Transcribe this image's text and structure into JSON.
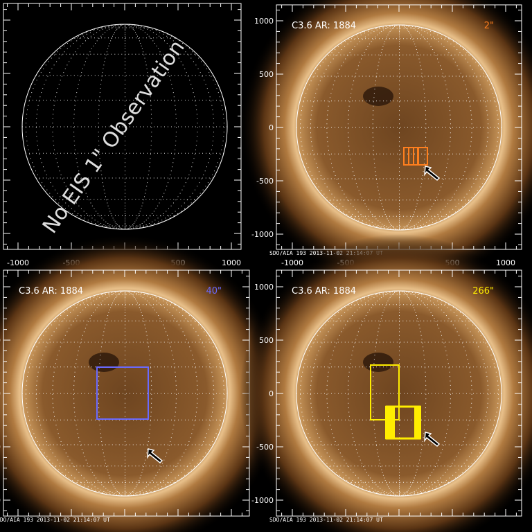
{
  "panels": [
    {
      "id": "no-obs",
      "overlay_text": "No EIS 1\" Observation",
      "has_sun": false,
      "x_ticks": [
        "-1000",
        "-500",
        "0",
        "500",
        "1000"
      ],
      "y_ticks": []
    },
    {
      "id": "2arcsec",
      "title": "C3.6 AR: 1884",
      "slit": "2\"",
      "slit_color": "#ff7f1e",
      "has_sun": true,
      "x_ticks": [
        "-1000",
        "-500",
        "0",
        "500",
        "1000"
      ],
      "y_ticks": [
        "1000",
        "500",
        "0",
        "-500",
        "-1000"
      ],
      "footer": "SDO/AIA 193  2013-11-02 21:14:07 UT"
    },
    {
      "id": "40arcsec",
      "title": "C3.6 AR: 1884",
      "slit": "40\"",
      "slit_color": "#6a6aff",
      "has_sun": true,
      "x_ticks": [],
      "y_ticks": [
        "500",
        "0",
        "-500",
        "-1000"
      ],
      "footer": "SDO/AIA 193  2013-11-02 21:14:07 UT"
    },
    {
      "id": "266arcsec",
      "title": "C3.6 AR: 1884",
      "slit": "266\"",
      "slit_color": "#ffee00",
      "has_sun": true,
      "x_ticks": [],
      "y_ticks": [
        "1000",
        "500",
        "0",
        "-500",
        "-1000"
      ],
      "footer": "SDO/AIA 193  2013-11-02 21:14:07 UT"
    }
  ],
  "colors": {
    "sun_core": "#8a5a2a",
    "corona": "#c89050",
    "grid": "#ffffff"
  }
}
